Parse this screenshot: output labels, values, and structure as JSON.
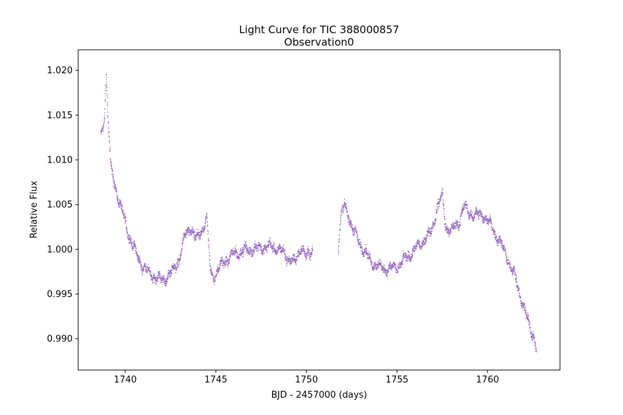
{
  "chart_data": {
    "type": "scatter",
    "title": "Light Curve for TIC 388000857",
    "subtitle": "Observation0",
    "xlabel": "BJD - 2457000 (days)",
    "ylabel": "Relative Flux",
    "xlim": [
      1737.4,
      1764.0
    ],
    "ylim": [
      0.9865,
      1.0223
    ],
    "x_ticks": [
      1740,
      1745,
      1750,
      1755,
      1760
    ],
    "x_tick_labels": [
      "1740",
      "1745",
      "1750",
      "1755",
      "1760"
    ],
    "y_ticks": [
      0.99,
      0.995,
      1.0,
      1.005,
      1.01,
      1.015,
      1.02
    ],
    "y_tick_labels": [
      "0.990",
      "0.995",
      "1.000",
      "1.005",
      "1.010",
      "1.015",
      "1.020"
    ],
    "grid": false,
    "marker_color": "#9467bd",
    "gap": [
      1750.4,
      1751.7
    ],
    "series": [
      {
        "x": [
          1738.65,
          1738.85,
          1738.95,
          1739.05,
          1739.2,
          1739.4,
          1739.7,
          1740.0,
          1740.3,
          1740.6,
          1741.0,
          1741.4,
          1741.9,
          1742.2,
          1742.6,
          1743.0,
          1743.3,
          1743.6,
          1743.9,
          1744.2,
          1744.5,
          1744.7,
          1744.9,
          1745.4,
          1746.0,
          1746.5,
          1747.0,
          1747.5,
          1748.0,
          1748.5,
          1749.0,
          1749.4,
          1749.7,
          1750.0,
          1750.35,
          1751.75,
          1751.9,
          1752.1,
          1752.3,
          1752.5,
          1753.0,
          1753.5,
          1754.0,
          1754.5,
          1755.0,
          1755.5,
          1756.0,
          1756.5,
          1756.9,
          1757.2,
          1757.5,
          1757.7,
          1758.0,
          1758.4,
          1758.7,
          1759.0,
          1759.4,
          1759.8,
          1760.1,
          1760.5,
          1761.0,
          1761.5,
          1762.0,
          1762.3,
          1762.6,
          1762.7
        ],
        "y": [
          1.0125,
          1.015,
          1.0195,
          1.0145,
          1.009,
          1.0075,
          1.005,
          1.003,
          1.001,
          0.9995,
          0.998,
          0.9972,
          0.9966,
          0.9967,
          0.9975,
          0.999,
          1.0015,
          1.0025,
          1.001,
          1.002,
          1.0035,
          0.9975,
          0.997,
          0.9985,
          0.9995,
          0.9998,
          1.0,
          1.0002,
          1.0003,
          1.0,
          0.999,
          0.9985,
          1.0005,
          0.999,
          1.0,
          1.0,
          1.0035,
          1.005,
          1.004,
          1.0025,
          1.0005,
          0.9988,
          0.998,
          0.9978,
          0.998,
          0.999,
          1.0,
          1.001,
          1.002,
          1.0045,
          1.006,
          1.0025,
          1.002,
          1.003,
          1.0048,
          1.004,
          1.0038,
          1.0038,
          1.003,
          1.0015,
          0.9995,
          0.997,
          0.9935,
          0.9915,
          0.99,
          0.9888
        ]
      }
    ]
  }
}
